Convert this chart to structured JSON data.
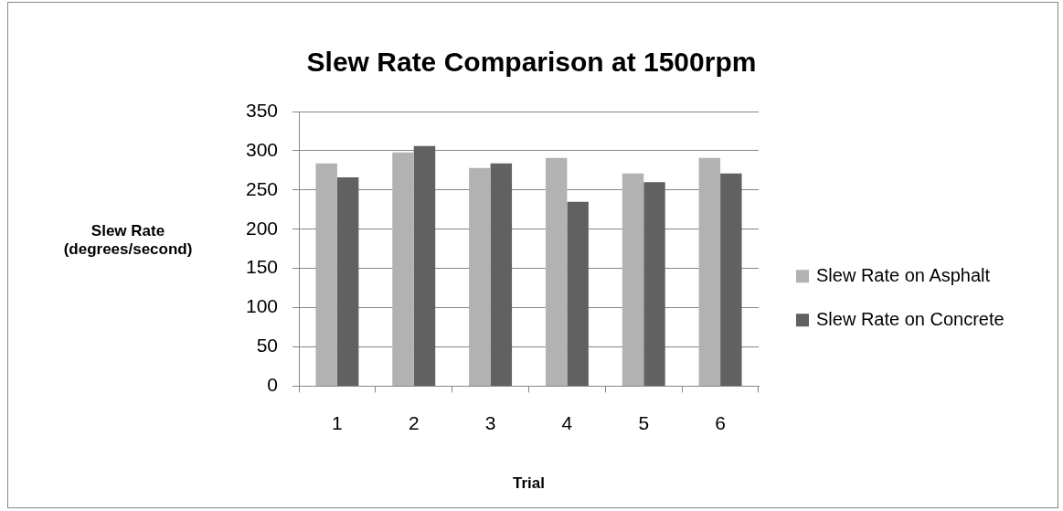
{
  "chart_data": {
    "type": "bar",
    "title": "Slew Rate Comparison at 1500rpm",
    "xlabel": "Trial",
    "ylabel": "Slew Rate (degrees/second)",
    "categories": [
      "1",
      "2",
      "3",
      "4",
      "5",
      "6"
    ],
    "series": [
      {
        "name": "Slew Rate on Asphalt",
        "color": "#b2b2b2",
        "values": [
          284,
          298,
          278,
          291,
          271,
          291
        ]
      },
      {
        "name": "Slew Rate on Concrete",
        "color": "#616161",
        "values": [
          266,
          306,
          284,
          235,
          260,
          271
        ]
      }
    ],
    "ylim": [
      0,
      350
    ],
    "yticks": [
      0,
      50,
      100,
      150,
      200,
      250,
      300,
      350
    ],
    "grid": "y",
    "legend": "right"
  }
}
